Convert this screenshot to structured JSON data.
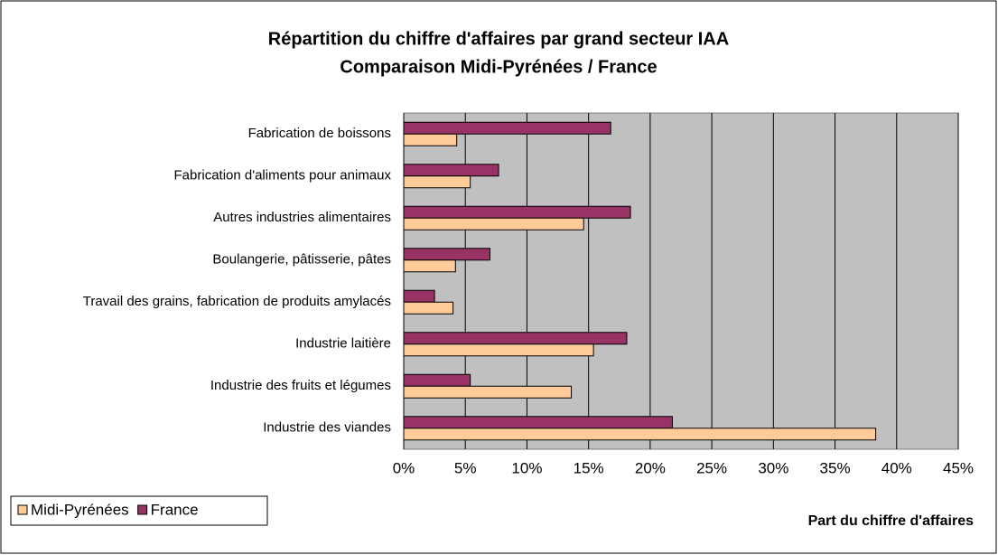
{
  "chart_data": {
    "type": "hbar",
    "title": "Répartition du chiffre d'affaires par grand secteur IAA",
    "subtitle": "Comparaison Midi-Pyrénées / France",
    "x_label": "Part du chiffre d'affaires",
    "categories": [
      "Fabrication de boissons",
      "Fabrication d'aliments pour animaux",
      "Autres industries alimentaires",
      "Boulangerie, pâtisserie, pâtes",
      "Travail des grains, fabrication de produits amylacés",
      "Industrie laitière",
      "Industrie des fruits et légumes",
      "Industrie des viandes"
    ],
    "series": [
      {
        "name": "Midi-Pyrénées",
        "color": "#ffcc99",
        "values": [
          4.3,
          5.4,
          14.6,
          4.2,
          4.0,
          15.4,
          13.6,
          38.3
        ]
      },
      {
        "name": "France",
        "color": "#993366",
        "values": [
          16.8,
          7.7,
          18.4,
          7.0,
          2.5,
          18.1,
          5.4,
          21.8
        ]
      }
    ],
    "xlim": [
      0,
      45
    ],
    "xticks": [
      {
        "value": 0,
        "label": "0%"
      },
      {
        "value": 5,
        "label": "5%"
      },
      {
        "value": 10,
        "label": "10%"
      },
      {
        "value": 15,
        "label": "15%"
      },
      {
        "value": 20,
        "label": "20%"
      },
      {
        "value": 25,
        "label": "25%"
      },
      {
        "value": 30,
        "label": "30%"
      },
      {
        "value": 35,
        "label": "35%"
      },
      {
        "value": 40,
        "label": "40%"
      },
      {
        "value": 45,
        "label": "45%"
      }
    ],
    "grid": true,
    "legend": "bottom-left"
  }
}
